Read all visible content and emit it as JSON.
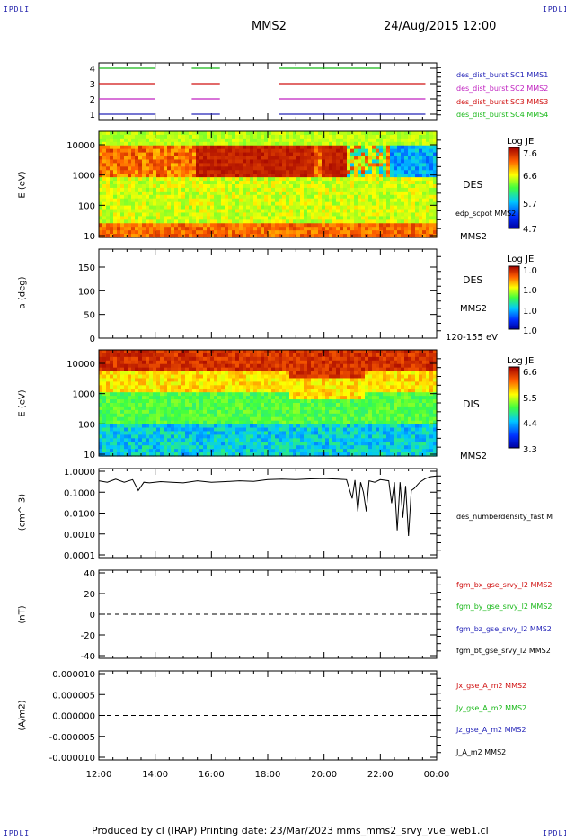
{
  "header": {
    "logo_left": "IPDLI",
    "logo_right": "IPDLI",
    "spacecraft": "MMS2",
    "datetime": "24/Aug/2015 12:00"
  },
  "footer": {
    "text": "Produced by cl (IRAP)   Printing date: 23/Mar/2023   mms_mms2_srvy_vue_web1.cl",
    "logo_left": "IPDLI",
    "logo_right": "IPDLI"
  },
  "colors": {
    "sc1": "#2424b8",
    "sc2": "#c020c0",
    "sc3": "#d01010",
    "sc4": "#18b818",
    "bx": "#d01010",
    "by": "#18b818",
    "bz": "#2424b8",
    "bt": "#000000"
  },
  "chart_data": [
    {
      "id": "coverage",
      "type": "line",
      "yticks": [
        "1",
        "2",
        "3",
        "4"
      ],
      "series": [
        {
          "name": "des_dist_burst SC1 MMS1",
          "y": 1,
          "segments": [
            [
              12.0,
              14.0
            ],
            [
              15.3,
              16.3
            ],
            [
              18.4,
              23.6
            ]
          ]
        },
        {
          "name": "des_dist_burst SC2 MMS2",
          "y": 2,
          "segments": [
            [
              12.0,
              14.0
            ],
            [
              15.3,
              16.3
            ],
            [
              18.4,
              23.6
            ]
          ]
        },
        {
          "name": "des_dist_burst SC3 MMS3",
          "y": 3,
          "segments": [
            [
              12.0,
              14.0
            ],
            [
              15.3,
              16.3
            ],
            [
              18.4,
              23.6
            ]
          ]
        },
        {
          "name": "des_dist_burst SC4 MMS4",
          "y": 4,
          "segments": [
            [
              12.0,
              14.0
            ],
            [
              15.3,
              16.3
            ],
            [
              18.4,
              22.0
            ]
          ]
        }
      ]
    },
    {
      "id": "des-energy",
      "type": "heatmap",
      "ylabel": "E (eV)",
      "yticks": [
        "10",
        "100",
        "1000",
        "10000"
      ],
      "instrument": "DES",
      "sc": "MMS2",
      "overlay_label": "edp_scpot MMS2",
      "colorbar": {
        "title": "Log JE",
        "ticks": [
          "7.6",
          "6.6",
          "5.7",
          "4.7"
        ]
      }
    },
    {
      "id": "des-pitch",
      "type": "heatmap",
      "ylabel": "a (deg)",
      "yticks": [
        "0",
        "50",
        "100",
        "150"
      ],
      "instrument": "DES",
      "sc": "MMS2",
      "range_label": "120-155 eV",
      "colorbar": {
        "title": "Log JE",
        "ticks": [
          "1.0",
          "1.0",
          "1.0",
          "1.0"
        ]
      }
    },
    {
      "id": "dis-energy",
      "type": "heatmap",
      "ylabel": "E (eV)",
      "yticks": [
        "10",
        "100",
        "1000",
        "10000"
      ],
      "instrument": "DIS",
      "sc": "MMS2",
      "colorbar": {
        "title": "Log JE",
        "ticks": [
          "6.6",
          "5.5",
          "4.4",
          "3.3"
        ]
      }
    },
    {
      "id": "density",
      "type": "line",
      "ylabel": "(cm^-3)",
      "yticks": [
        "0.0001",
        "0.0010",
        "0.0100",
        "0.1000",
        "1.0000"
      ],
      "series_label": "des_numberdensity_fast M",
      "x": [
        12.0,
        12.3,
        12.6,
        12.9,
        13.2,
        13.4,
        13.6,
        13.8,
        14.2,
        14.6,
        15.0,
        15.5,
        16.0,
        16.5,
        17.0,
        17.5,
        18.0,
        18.5,
        19.0,
        19.5,
        20.0,
        20.5,
        20.8,
        21.0,
        21.1,
        21.2,
        21.3,
        21.4,
        21.5,
        21.6,
        21.8,
        22.0,
        22.3,
        22.4,
        22.5,
        22.6,
        22.7,
        22.8,
        22.9,
        23.0,
        23.1,
        23.2,
        23.4,
        23.6,
        23.8,
        24.0
      ],
      "y": [
        0.35,
        0.3,
        0.42,
        0.3,
        0.4,
        0.12,
        0.3,
        0.28,
        0.32,
        0.3,
        0.28,
        0.35,
        0.3,
        0.32,
        0.35,
        0.33,
        0.4,
        0.42,
        0.4,
        0.43,
        0.45,
        0.42,
        0.4,
        0.05,
        0.38,
        0.012,
        0.3,
        0.1,
        0.012,
        0.35,
        0.3,
        0.4,
        0.35,
        0.03,
        0.3,
        0.0015,
        0.3,
        0.006,
        0.2,
        0.0008,
        0.12,
        0.15,
        0.3,
        0.45,
        0.55,
        0.6
      ]
    },
    {
      "id": "b-field",
      "type": "line",
      "ylabel": "(nT)",
      "yticks": [
        "-40",
        "-20",
        "0",
        "20",
        "40"
      ],
      "zero_line": true,
      "legend": [
        "fgm_bx_gse_srvy_l2 MMS2",
        "fgm_by_gse_srvy_l2 MMS2",
        "fgm_bz_gse_srvy_l2 MMS2",
        "fgm_bt_gse_srvy_l2 MMS2"
      ]
    },
    {
      "id": "current",
      "type": "line",
      "ylabel": "(A/m2)",
      "yticks": [
        "-0.000010",
        "-0.000005",
        "0.000000",
        "0.000005",
        "0.000010"
      ],
      "zero_line": true,
      "legend": [
        "Jx_gse_A_m2 MMS2",
        "Jy_gse_A_m2 MMS2",
        "Jz_gse_A_m2 MMS2",
        "J_A_m2 MMS2"
      ]
    }
  ],
  "time_axis": {
    "ticks": [
      "12:00",
      "14:00",
      "16:00",
      "18:00",
      "20:00",
      "22:00",
      "00:00"
    ],
    "range_hours": [
      12,
      24
    ]
  }
}
